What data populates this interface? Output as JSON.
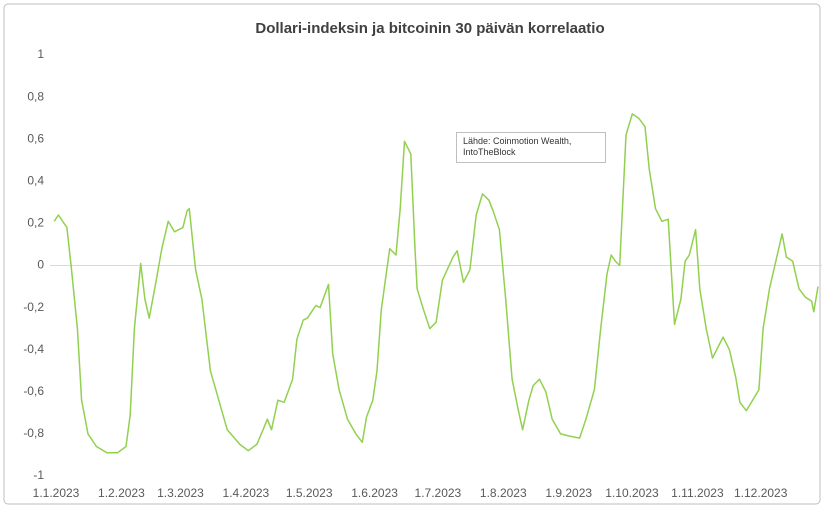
{
  "chart_data": {
    "type": "line",
    "title": "Dollari-indeksin ja bitcoinin 30 päivän korrelaatio",
    "annotation": "Lähde: Coinmotion Wealth, IntoTheBlock",
    "x": [
      "3.1.2023",
      "5.1.2023",
      "9.1.2023",
      "11.1.2023",
      "14.1.2023",
      "16.1.2023",
      "19.1.2023",
      "23.1.2023",
      "28.1.2023",
      "2.2.2023",
      "6.2.2023",
      "8.2.2023",
      "10.2.2023",
      "13.2.2023",
      "15.2.2023",
      "17.2.2023",
      "20.2.2023",
      "23.2.2023",
      "26.2.2023",
      "1.3.2023",
      "5.3.2023",
      "7.3.2023",
      "8.3.2023",
      "11.3.2023",
      "14.3.2023",
      "18.3.2023",
      "22.3.2023",
      "26.3.2023",
      "1.4.2023",
      "5.4.2023",
      "9.4.2023",
      "12.4.2023",
      "14.4.2023",
      "16.4.2023",
      "19.4.2023",
      "22.4.2023",
      "26.4.2023",
      "28.4.2023",
      "1.5.2023",
      "3.5.2023",
      "7.5.2023",
      "9.5.2023",
      "13.5.2023",
      "15.5.2023",
      "18.5.2023",
      "22.5.2023",
      "26.5.2023",
      "29.5.2023",
      "31.5.2023",
      "3.6.2023",
      "5.6.2023",
      "7.6.2023",
      "11.6.2023",
      "14.6.2023",
      "16.6.2023",
      "18.6.2023",
      "21.6.2023",
      "23.6.2023",
      "24.6.2023",
      "27.6.2023",
      "30.6.2023",
      "3.7.2023",
      "6.7.2023",
      "11.7.2023",
      "13.7.2023",
      "16.7.2023",
      "19.7.2023",
      "22.7.2023",
      "25.7.2023",
      "28.7.2023",
      "30.7.2023",
      "2.8.2023",
      "5.8.2023",
      "8.8.2023",
      "11.8.2023",
      "13.8.2023",
      "16.8.2023",
      "18.8.2023",
      "21.8.2023",
      "24.8.2023",
      "27.8.2023",
      "31.8.2023",
      "4.9.2023",
      "9.9.2023",
      "12.9.2023",
      "16.9.2023",
      "19.9.2023",
      "22.9.2023",
      "24.9.2023",
      "26.9.2023",
      "28.9.2023",
      "1.10.2023",
      "4.10.2023",
      "7.10.2023",
      "10.10.2023",
      "12.10.2023",
      "15.10.2023",
      "18.10.2023",
      "21.10.2023",
      "24.10.2023",
      "27.10.2023",
      "29.10.2023",
      "31.10.2023",
      "3.11.2023",
      "5.11.2023",
      "8.11.2023",
      "11.11.2023",
      "14.11.2023",
      "16.11.2023",
      "19.11.2023",
      "22.11.2023",
      "24.11.2023",
      "27.11.2023",
      "30.11.2023",
      "3.12.2023",
      "5.12.2023",
      "8.12.2023",
      "11.12.2023",
      "14.12.2023",
      "16.12.2023",
      "19.12.2023",
      "22.12.2023",
      "25.12.2023",
      "28.12.2023",
      "29.12.2023",
      "31.12.2023"
    ],
    "series": [
      {
        "color": "#92d050",
        "values": [
          0.21,
          0.24,
          0.18,
          0,
          -0.3,
          -0.64,
          -0.8,
          -0.86,
          -0.89,
          -0.89,
          -0.86,
          -0.71,
          -0.3,
          0.01,
          -0.16,
          -0.25,
          -0.09,
          0.08,
          0.21,
          0.16,
          0.18,
          0.26,
          0.27,
          -0.02,
          -0.16,
          -0.5,
          -0.64,
          -0.78,
          -0.85,
          -0.88,
          -0.85,
          -0.78,
          -0.73,
          -0.78,
          -0.64,
          -0.65,
          -0.54,
          -0.35,
          -0.26,
          -0.25,
          -0.19,
          -0.2,
          -0.09,
          -0.42,
          -0.59,
          -0.73,
          -0.8,
          -0.84,
          -0.72,
          -0.64,
          -0.5,
          -0.21,
          0.08,
          0.05,
          0.27,
          0.59,
          0.53,
          0.08,
          -0.11,
          -0.21,
          -0.3,
          -0.27,
          -0.07,
          0.04,
          0.07,
          -0.08,
          -0.02,
          0.24,
          0.34,
          0.31,
          0.26,
          0.17,
          -0.16,
          -0.54,
          -0.69,
          -0.78,
          -0.64,
          -0.57,
          -0.54,
          -0.6,
          -0.73,
          -0.8,
          -0.81,
          -0.82,
          -0.73,
          -0.59,
          -0.3,
          -0.04,
          0.05,
          0.02,
          0,
          0.62,
          0.72,
          0.7,
          0.66,
          0.46,
          0.27,
          0.21,
          0.22,
          -0.28,
          -0.16,
          0.02,
          0.05,
          0.17,
          -0.11,
          -0.3,
          -0.44,
          -0.38,
          -0.34,
          -0.4,
          -0.53,
          -0.65,
          -0.69,
          -0.64,
          -0.59,
          -0.3,
          -0.11,
          0.02,
          0.15,
          0.04,
          0.02,
          -0.11,
          -0.15,
          -0.17,
          -0.22,
          -0.1
        ]
      }
    ],
    "xlim": [
      "1.1.2023",
      "31.12.2023"
    ],
    "xticks": [
      "1.1.2023",
      "1.2.2023",
      "1.3.2023",
      "1.4.2023",
      "1.5.2023",
      "1.6.2023",
      "1.7.2023",
      "1.8.2023",
      "1.9.2023",
      "1.10.2023",
      "1.11.2023",
      "1.12.2023"
    ],
    "ylim": [
      -1,
      1
    ],
    "yticks": [
      1,
      {
        "value": 0.8,
        "label": "0,8"
      },
      {
        "value": 0.6,
        "label": "0,6"
      },
      {
        "value": 0.4,
        "label": "0,4"
      },
      {
        "value": 0.2,
        "label": "0,2"
      },
      0,
      {
        "value": -0.2,
        "label": "-0,2"
      },
      {
        "value": -0.4,
        "label": "-0,4"
      },
      {
        "value": -0.6,
        "label": "-0,6"
      },
      {
        "value": -0.8,
        "label": "-0,8"
      },
      -1
    ],
    "grid": false
  }
}
